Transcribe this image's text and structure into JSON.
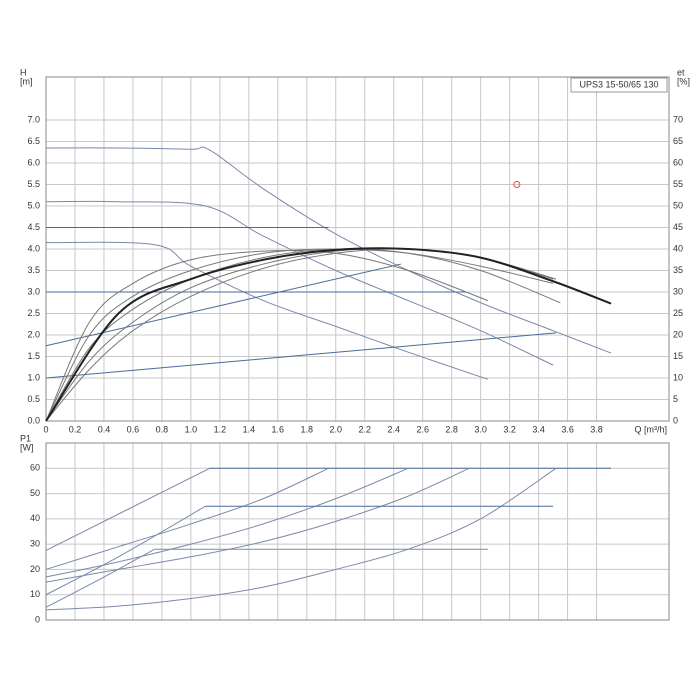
{
  "chart_data": [
    {
      "type": "line",
      "title": "UPS3 15-50/65  130",
      "ylabel": [
        "H",
        "[m]"
      ],
      "y2label": [
        "et",
        "[%]"
      ],
      "xlabel": "Q [m³/h]",
      "xlim": [
        0,
        4.3
      ],
      "ylim": [
        0,
        8
      ],
      "y2lim": [
        0,
        80
      ],
      "grid": true,
      "xticks": [
        0,
        0.2,
        0.4,
        0.6,
        0.8,
        {
          "value": 1,
          "label": "1.0"
        },
        1.2,
        1.4,
        1.6,
        1.8,
        {
          "value": 2,
          "label": "2.0"
        },
        2.2,
        2.4,
        2.6,
        2.8,
        {
          "value": 3,
          "label": "3.0"
        },
        3.2,
        3.4,
        3.6,
        3.8
      ],
      "yticks": [
        {
          "value": 0,
          "label": "0.0"
        },
        0.5,
        {
          "value": 1,
          "label": "1.0"
        },
        1.5,
        {
          "value": 2,
          "label": "2.0"
        },
        2.5,
        {
          "value": 3,
          "label": "3.0"
        },
        3.5,
        {
          "value": 4,
          "label": "4.0"
        },
        4.5,
        {
          "value": 5,
          "label": "5.0"
        },
        5.5,
        {
          "value": 6,
          "label": "6.0"
        },
        6.5,
        {
          "value": 7,
          "label": "7.0"
        }
      ],
      "y2ticks": [
        0,
        5,
        10,
        15,
        20,
        25,
        30,
        35,
        40,
        45,
        50,
        55,
        60,
        65,
        70
      ],
      "series": [
        {
          "color": "#7a8aaa",
          "x": [
            0,
            0.5,
            1.0,
            1.13,
            1.5,
            2.0,
            2.5,
            3.0,
            3.5,
            3.9
          ],
          "values": [
            6.35,
            6.35,
            6.32,
            6.3,
            5.4,
            4.35,
            3.5,
            2.75,
            2.1,
            1.58
          ]
        },
        {
          "color": "#7a8aaa",
          "x": [
            0,
            0.5,
            1.1,
            1.5,
            2.0,
            2.5,
            3.0,
            3.5
          ],
          "values": [
            5.1,
            5.1,
            5.0,
            4.3,
            3.5,
            2.8,
            2.1,
            1.3
          ]
        },
        {
          "color": "#7a8aaa",
          "x": [
            0,
            0.75,
            1.0,
            1.5,
            2.0,
            2.5,
            3.05
          ],
          "values": [
            4.15,
            4.1,
            3.6,
            2.8,
            2.2,
            1.6,
            0.97
          ]
        },
        {
          "color": "#4a6a9a",
          "x": [
            0,
            1.95
          ],
          "values": [
            4.5,
            4.5
          ]
        },
        {
          "color": "#4a6a9a",
          "x": [
            0,
            2.9
          ],
          "values": [
            3.0,
            3.0
          ]
        },
        {
          "color": "#4a6a9a",
          "x": [
            0,
            2.45
          ],
          "values": [
            1.75,
            3.65
          ]
        },
        {
          "color": "#4a6a9a",
          "x": [
            0,
            3.52
          ],
          "values": [
            1.0,
            2.05
          ]
        },
        {
          "color": "#777777",
          "axis": "y2",
          "x": [
            0,
            0.3,
            0.6,
            1.0,
            1.5,
            2.0,
            2.5,
            3.0,
            3.5
          ],
          "values": [
            0,
            20,
            29,
            35,
            39,
            40,
            39,
            36,
            32
          ]
        },
        {
          "color": "#777777",
          "axis": "y2",
          "x": [
            0,
            0.3,
            0.6,
            1.0,
            1.5,
            2.0,
            2.5,
            3.0,
            3.55
          ],
          "values": [
            0,
            17,
            26,
            33,
            38,
            40,
            39,
            35,
            27.5
          ]
        },
        {
          "color": "#777777",
          "axis": "y2",
          "x": [
            0,
            0.3,
            0.6,
            1.0,
            1.5,
            2.0,
            2.5,
            3.05
          ],
          "values": [
            0,
            23,
            32,
            37.5,
            39.5,
            39,
            35,
            28
          ]
        },
        {
          "color": "#777777",
          "axis": "y2",
          "x": [
            0,
            0.3,
            0.6,
            1.0,
            1.5,
            2.0,
            2.5,
            3.0,
            3.52
          ],
          "values": [
            0,
            14,
            23,
            31,
            36.5,
            39.5,
            40,
            38,
            33
          ]
        },
        {
          "color": "#777777",
          "axis": "y2",
          "x": [
            0,
            0.3,
            0.6,
            1.0,
            1.5,
            2.0,
            2.5,
            3.0,
            3.5
          ],
          "values": [
            0,
            12,
            21,
            29,
            35.5,
            39,
            40,
            38,
            33
          ]
        },
        {
          "color": "#222222",
          "width": 2,
          "axis": "y2",
          "x": [
            0,
            0.5,
            1.0,
            1.5,
            2.0,
            2.5,
            3.0,
            3.5,
            3.9
          ],
          "values": [
            0,
            25,
            33,
            37.5,
            39.8,
            40,
            38,
            32.5,
            27.3
          ]
        },
        {
          "color": "#e05050",
          "marker": "circle",
          "x": [
            3.25
          ],
          "values": [
            5.5
          ]
        }
      ]
    },
    {
      "type": "line",
      "ylabel": [
        "P1",
        "[W]"
      ],
      "xlim": [
        0,
        4.3
      ],
      "ylim": [
        0,
        70
      ],
      "grid": true,
      "xticks": [
        0,
        0.2,
        0.4,
        0.6,
        0.8,
        {
          "value": 1,
          "label": "1.0"
        },
        1.2,
        1.4,
        1.6,
        1.8,
        {
          "value": 2,
          "label": "2.0"
        },
        2.2,
        2.4,
        2.6,
        2.8,
        {
          "value": 3,
          "label": "3.0"
        },
        3.2,
        3.4,
        3.6,
        3.8
      ],
      "yticks": [
        0,
        10,
        20,
        30,
        40,
        50,
        60
      ],
      "series": [
        {
          "color": "#7a8aaa",
          "x": [
            0,
            1.13
          ],
          "values": [
            27.5,
            60
          ]
        },
        {
          "color": "#4a6a9a",
          "x": [
            1.13,
            3.9
          ],
          "values": [
            60,
            60
          ]
        },
        {
          "color": "#7a8aaa",
          "x": [
            0,
            0.5,
            1.0,
            1.5,
            1.95
          ],
          "values": [
            20,
            29,
            38,
            48,
            60
          ]
        },
        {
          "color": "#7a8aaa",
          "x": [
            0,
            0.5,
            1.0,
            1.5,
            2.0,
            2.5
          ],
          "values": [
            17,
            23,
            30,
            38,
            48,
            60
          ]
        },
        {
          "color": "#7a8aaa",
          "x": [
            0,
            0.5,
            1.0,
            1.5,
            2.0,
            2.5,
            2.92
          ],
          "values": [
            15,
            20,
            25,
            31,
            39,
            49,
            60
          ]
        },
        {
          "color": "#7a8aaa",
          "x": [
            0,
            0.5,
            1.0,
            1.5,
            2.0,
            2.5,
            3.0,
            3.52
          ],
          "values": [
            4,
            5.5,
            8.5,
            13,
            20,
            28,
            40,
            60
          ]
        },
        {
          "color": "#7a8aaa",
          "x": [
            0,
            0.5,
            1.1
          ],
          "values": [
            10,
            25,
            45
          ]
        },
        {
          "color": "#4a6a9a",
          "x": [
            1.1,
            3.5
          ],
          "values": [
            45,
            45
          ]
        },
        {
          "color": "#7a8aaa",
          "x": [
            0,
            0.4,
            0.75
          ],
          "values": [
            5,
            17,
            28
          ]
        },
        {
          "color": "#7a8aaa",
          "x": [
            0.75,
            3.05
          ],
          "values": [
            28,
            28
          ]
        }
      ]
    }
  ]
}
